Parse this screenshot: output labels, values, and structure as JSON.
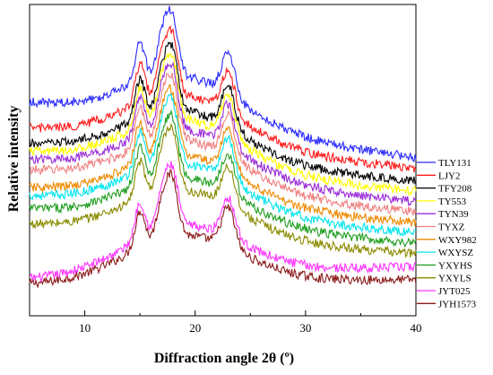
{
  "chart_data": {
    "type": "line",
    "title": "",
    "xlabel": "Diffraction angle 2θ (º)",
    "ylabel": "Relative intensity",
    "xlim": [
      5,
      40
    ],
    "xticks": [
      10,
      20,
      30,
      40
    ],
    "yticks_shown": false,
    "grid": false,
    "legend_placement": "right",
    "note": "Values are relative intensities in arbitrary stacked units (y-axis has no tick labels); each series offset vertically.",
    "peaks_deg": [
      15.0,
      17.0,
      18.0,
      23.0
    ],
    "series": [
      {
        "name": "TLY131",
        "color": "#2b2bff",
        "baseline": 8.2,
        "end": 6.1,
        "peak_amp": 1.7,
        "hump": 3.4
      },
      {
        "name": "LJY2",
        "color": "#ff1a1a",
        "baseline": 7.2,
        "end": 5.7,
        "peak_amp": 1.7,
        "hump": 3.4
      },
      {
        "name": "TFY208",
        "color": "#000000",
        "baseline": 6.6,
        "end": 5.2,
        "peak_amp": 1.7,
        "hump": 3.4
      },
      {
        "name": "TY553",
        "color": "#ffff00",
        "baseline": 6.3,
        "end": 4.8,
        "peak_amp": 1.7,
        "hump": 3.4
      },
      {
        "name": "TYN39",
        "color": "#9b2bd8",
        "baseline": 6.0,
        "end": 4.4,
        "peak_amp": 1.7,
        "hump": 3.3
      },
      {
        "name": "TYXZ",
        "color": "#f08080",
        "baseline": 5.6,
        "end": 4.0,
        "peak_amp": 1.7,
        "hump": 3.3
      },
      {
        "name": "WXY982",
        "color": "#ee8a00",
        "baseline": 4.9,
        "end": 3.6,
        "peak_amp": 1.7,
        "hump": 3.3
      },
      {
        "name": "WXYSZ",
        "color": "#00e5ee",
        "baseline": 4.6,
        "end": 3.2,
        "peak_amp": 1.7,
        "hump": 3.3
      },
      {
        "name": "YXYHS",
        "color": "#1f9e1f",
        "baseline": 4.1,
        "end": 2.8,
        "peak_amp": 1.6,
        "hump": 3.2
      },
      {
        "name": "YXYLS",
        "color": "#8b8b00",
        "baseline": 3.5,
        "end": 2.4,
        "peak_amp": 1.6,
        "hump": 3.2
      },
      {
        "name": "JYT025",
        "color": "#ff33ff",
        "baseline": 1.4,
        "end": 1.9,
        "peak_amp": 1.6,
        "hump": 3.4
      },
      {
        "name": "JYH1573",
        "color": "#8b1a1a",
        "baseline": 1.2,
        "end": 1.4,
        "peak_amp": 1.6,
        "hump": 3.3
      }
    ]
  }
}
